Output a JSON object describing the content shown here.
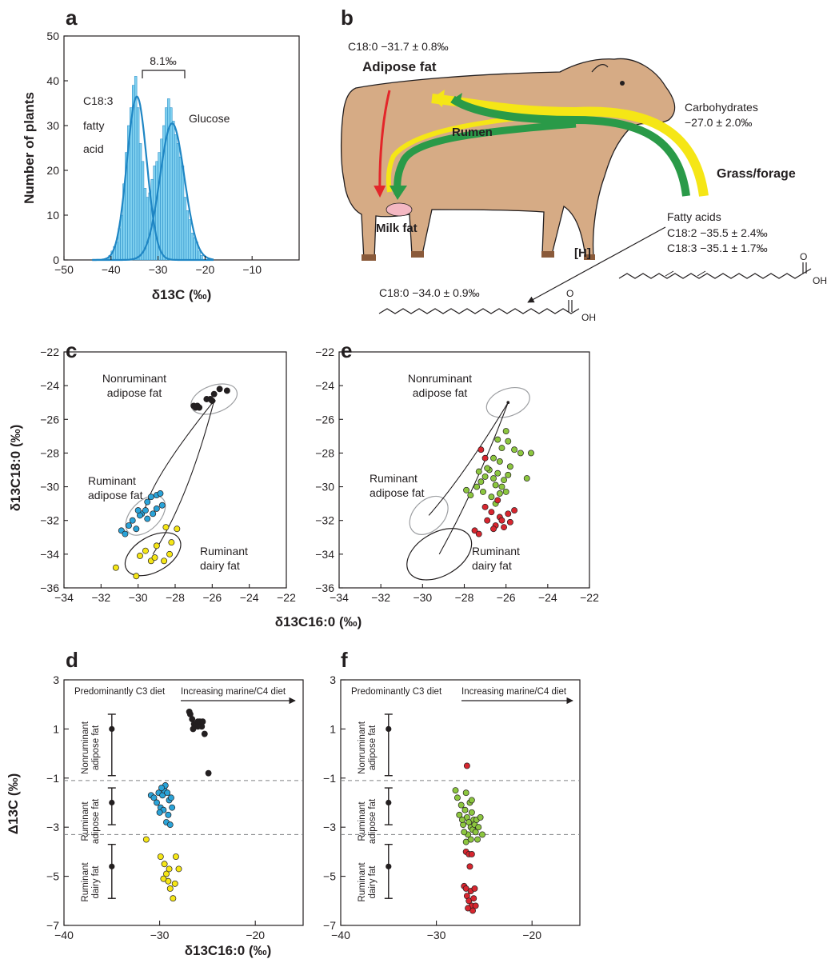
{
  "panels": {
    "a": {
      "letter": "a",
      "ylabel": "Number of plants",
      "xlabel": "δ13C (‰)",
      "label_c183_line1": "C18:3",
      "label_c183_line2": "fatty",
      "label_c183_line3": "acid",
      "label_glucose": "Glucose",
      "bracket": "8.1‰"
    },
    "b": {
      "letter": "b"
    },
    "c": {
      "letter": "c",
      "ylabel": "δ13C18:0 (‰)",
      "xlabel": "δ13C16:0 (‰)"
    },
    "d": {
      "letter": "d",
      "ylabel": "Δ13C (‰)",
      "xlabel": "δ13C16:0 (‰)"
    },
    "e": {
      "letter": "e"
    },
    "f": {
      "letter": "f"
    }
  },
  "cow": {
    "adipose_value": "C18:0 −31.7 ± 0.8‰",
    "adipose_label": "Adipose fat",
    "rumen": "Rumen",
    "milk": "Milk fat",
    "carbs_label": "Carbohydrates",
    "carbs_value": "−27.0 ± 2.0‰",
    "grass": "Grass/forage",
    "fatty_acids": "Fatty acids",
    "c182_value": "C18:2 −35.5 ± 2.4‰",
    "c183_value": "C18:3 −35.1 ± 1.7‰",
    "h_label": "[H]",
    "c180_value": "C18:0 −34.0 ± 0.9‰",
    "oh": "OH",
    "o": "O"
  },
  "groups": {
    "nonruminant": "Nonruminant adipose fat",
    "ruminant_adipose": "Ruminant adipose fat",
    "ruminant_dairy": "Ruminant dairy fat",
    "pred_c3": "Predominantly C3 diet",
    "increasing": "Increasing marine/C4 diet"
  },
  "colors": {
    "black": "#231f20",
    "blue": "#2aa3d8",
    "yellow": "#f5e616",
    "green": "#8cc63f",
    "red": "#d7262f",
    "hist": "#7fd0ef",
    "curve": "#1f86c4",
    "ellipse": "#9d9fa2",
    "cow_body": "#d6ab85"
  },
  "chart_data": [
    {
      "panel": "a",
      "type": "bar",
      "xlabel": "δ13C (‰)",
      "ylabel": "Number of plants",
      "xlim": [
        -50,
        0
      ],
      "ylim": [
        0,
        50
      ],
      "xticks": [
        -50,
        -40,
        -30,
        -20,
        -10
      ],
      "yticks": [
        0,
        10,
        20,
        30,
        40,
        50
      ],
      "bins": [
        -40.5,
        -40,
        -39.5,
        -39,
        -38.5,
        -38,
        -37.5,
        -37,
        -36.5,
        -36,
        -35.5,
        -35,
        -34.5,
        -34,
        -33.5,
        -33,
        -32.5,
        -32,
        -31.5,
        -31,
        -30.5,
        -30,
        -29.5,
        -29,
        -28.5,
        -28,
        -27.5,
        -27,
        -26.5,
        -26,
        -25.5,
        -25,
        -24.5,
        -24,
        -23.5,
        -23,
        -22.5,
        -22,
        -21.5,
        -21,
        -20.5
      ],
      "counts": [
        1,
        2,
        3,
        4,
        7,
        10,
        17,
        24,
        30,
        34,
        39,
        41,
        34,
        26,
        22,
        16,
        14,
        15,
        18,
        21,
        22,
        24,
        27,
        30,
        34,
        36,
        34,
        31,
        28,
        26,
        23,
        21,
        14,
        11,
        9,
        6,
        5,
        4,
        2,
        1,
        0
      ],
      "curves": [
        {
          "mean": -34.5,
          "sd": 2.1,
          "peak": 36.5
        },
        {
          "mean": -27.0,
          "sd": 2.6,
          "peak": 30.5
        }
      ]
    },
    {
      "panel": "c",
      "type": "scatter",
      "xlabel": "δ13C16:0 (‰)",
      "ylabel": "δ13C18:0 (‰)",
      "xlim": [
        -34,
        -22
      ],
      "ylim": [
        -36,
        -22
      ],
      "xticks": [
        -34,
        -32,
        -30,
        -28,
        -26,
        -24,
        -22
      ],
      "yticks": [
        -36,
        -34,
        -32,
        -30,
        -28,
        -26,
        -24,
        -22
      ],
      "series": [
        {
          "name": "Nonruminant adipose fat",
          "color": "black",
          "points": [
            [
              -27.0,
              -25.2
            ],
            [
              -26.8,
              -25.2
            ],
            [
              -26.9,
              -25.3
            ],
            [
              -26.3,
              -24.8
            ],
            [
              -26.1,
              -24.8
            ],
            [
              -25.9,
              -24.5
            ],
            [
              -25.6,
              -24.2
            ],
            [
              -25.2,
              -24.3
            ],
            [
              -26.0,
              -24.9
            ],
            [
              -26.7,
              -25.3
            ]
          ]
        },
        {
          "name": "Ruminant adipose fat",
          "color": "blue",
          "points": [
            [
              -30.9,
              -32.6
            ],
            [
              -30.7,
              -32.8
            ],
            [
              -30.5,
              -32.3
            ],
            [
              -30.3,
              -32.0
            ],
            [
              -30.1,
              -32.5
            ],
            [
              -29.8,
              -31.6
            ],
            [
              -29.6,
              -31.4
            ],
            [
              -29.9,
              -31.7
            ],
            [
              -29.5,
              -31.9
            ],
            [
              -29.3,
              -30.6
            ],
            [
              -29.0,
              -30.5
            ],
            [
              -28.8,
              -30.4
            ],
            [
              -28.7,
              -31.1
            ],
            [
              -29.2,
              -31.6
            ],
            [
              -29.5,
              -30.9
            ],
            [
              -30.0,
              -31.4
            ],
            [
              -29.0,
              -31.3
            ]
          ]
        },
        {
          "name": "Ruminant dairy fat",
          "color": "yellow",
          "points": [
            [
              -31.2,
              -34.8
            ],
            [
              -30.1,
              -35.3
            ],
            [
              -29.9,
              -34.1
            ],
            [
              -29.6,
              -33.8
            ],
            [
              -29.3,
              -34.4
            ],
            [
              -29.0,
              -33.5
            ],
            [
              -28.6,
              -34.4
            ],
            [
              -28.2,
              -33.3
            ],
            [
              -28.3,
              -34.0
            ],
            [
              -28.5,
              -32.4
            ],
            [
              -27.9,
              -32.5
            ],
            [
              -29.1,
              -34.2
            ]
          ]
        }
      ]
    },
    {
      "panel": "e",
      "type": "scatter",
      "xlabel": "δ13C16:0 (‰)",
      "ylabel": "δ13C18:0 (‰)",
      "xlim": [
        -34,
        -22
      ],
      "ylim": [
        -36,
        -22
      ],
      "xticks": [
        -34,
        -32,
        -30,
        -28,
        -26,
        -24,
        -22
      ],
      "yticks": [
        -36,
        -34,
        -32,
        -30,
        -28,
        -26,
        -24,
        -22
      ],
      "series": [
        {
          "name": "green",
          "color": "green",
          "points": [
            [
              -27.9,
              -30.2
            ],
            [
              -27.7,
              -30.5
            ],
            [
              -27.4,
              -30.0
            ],
            [
              -27.2,
              -29.7
            ],
            [
              -27.0,
              -29.4
            ],
            [
              -26.8,
              -29.0
            ],
            [
              -26.6,
              -29.5
            ],
            [
              -26.5,
              -29.9
            ],
            [
              -26.4,
              -29.2
            ],
            [
              -26.2,
              -30.0
            ],
            [
              -26.1,
              -29.6
            ],
            [
              -26.0,
              -30.3
            ],
            [
              -25.9,
              -29.3
            ],
            [
              -25.8,
              -28.8
            ],
            [
              -26.3,
              -28.5
            ],
            [
              -26.6,
              -28.3
            ],
            [
              -26.9,
              -28.9
            ],
            [
              -27.1,
              -30.3
            ],
            [
              -26.7,
              -30.6
            ],
            [
              -26.5,
              -31.0
            ],
            [
              -26.2,
              -27.7
            ],
            [
              -25.9,
              -27.3
            ],
            [
              -25.6,
              -27.8
            ],
            [
              -25.3,
              -28.0
            ],
            [
              -24.8,
              -28.0
            ],
            [
              -25.0,
              -29.5
            ],
            [
              -26.0,
              -26.7
            ],
            [
              -26.4,
              -27.2
            ],
            [
              -27.3,
              -29.1
            ],
            [
              -26.3,
              -30.4
            ]
          ]
        },
        {
          "name": "red",
          "color": "red",
          "points": [
            [
              -27.2,
              -27.8
            ],
            [
              -27.0,
              -28.3
            ],
            [
              -27.5,
              -32.6
            ],
            [
              -27.3,
              -32.8
            ],
            [
              -26.9,
              -32.0
            ],
            [
              -26.7,
              -31.5
            ],
            [
              -26.5,
              -32.3
            ],
            [
              -26.3,
              -31.8
            ],
            [
              -26.1,
              -32.4
            ],
            [
              -25.9,
              -31.6
            ],
            [
              -25.8,
              -32.1
            ],
            [
              -25.6,
              -31.4
            ],
            [
              -26.4,
              -30.8
            ],
            [
              -26.6,
              -32.5
            ],
            [
              -26.2,
              -32.0
            ],
            [
              -27.0,
              -31.2
            ]
          ]
        }
      ]
    },
    {
      "panel": "d",
      "type": "scatter",
      "xlabel": "δ13C16:0 (‰)",
      "ylabel": "Δ13C (‰)",
      "xlim": [
        -40,
        -15
      ],
      "ylim": [
        -7,
        3
      ],
      "xticks": [
        -40,
        -30,
        -20
      ],
      "yticks": [
        -7,
        -5,
        -3,
        -1,
        1,
        3
      ],
      "dashed_y": [
        -1.1,
        -3.3
      ],
      "reference_bars": [
        {
          "x": -35,
          "mean": 1.0,
          "low": -0.9,
          "high": 1.6
        },
        {
          "x": -35,
          "mean": -2.0,
          "low": -2.9,
          "high": -1.4
        },
        {
          "x": -35,
          "mean": -4.6,
          "low": -5.9,
          "high": -3.7
        }
      ],
      "series": [
        {
          "name": "black",
          "color": "black",
          "points": [
            [
              -26.9,
              1.7
            ],
            [
              -26.8,
              1.6
            ],
            [
              -26.6,
              1.4
            ],
            [
              -26.4,
              1.2
            ],
            [
              -26.2,
              1.2
            ],
            [
              -26.0,
              1.3
            ],
            [
              -25.8,
              1.3
            ],
            [
              -25.6,
              1.1
            ],
            [
              -25.5,
              1.3
            ],
            [
              -25.3,
              0.8
            ],
            [
              -24.9,
              -0.8
            ],
            [
              -26.5,
              1.0
            ],
            [
              -26.0,
              1.1
            ]
          ]
        },
        {
          "name": "blue",
          "color": "blue",
          "points": [
            [
              -30.9,
              -1.7
            ],
            [
              -30.6,
              -1.8
            ],
            [
              -30.3,
              -2.0
            ],
            [
              -30.1,
              -1.6
            ],
            [
              -29.9,
              -2.2
            ],
            [
              -29.7,
              -1.7
            ],
            [
              -29.5,
              -1.5
            ],
            [
              -29.4,
              -1.3
            ],
            [
              -29.2,
              -1.6
            ],
            [
              -29.0,
              -1.9
            ],
            [
              -28.8,
              -1.8
            ],
            [
              -28.7,
              -2.2
            ],
            [
              -29.1,
              -2.5
            ],
            [
              -29.3,
              -2.8
            ],
            [
              -28.9,
              -2.9
            ],
            [
              -29.6,
              -2.3
            ],
            [
              -30.0,
              -2.4
            ],
            [
              -29.8,
              -1.4
            ]
          ]
        },
        {
          "name": "yellow",
          "color": "yellow",
          "points": [
            [
              -31.4,
              -3.5
            ],
            [
              -29.9,
              -4.2
            ],
            [
              -29.5,
              -4.5
            ],
            [
              -29.3,
              -4.9
            ],
            [
              -29.1,
              -5.2
            ],
            [
              -28.9,
              -5.5
            ],
            [
              -28.6,
              -5.9
            ],
            [
              -28.4,
              -5.3
            ],
            [
              -28.0,
              -4.7
            ],
            [
              -28.3,
              -4.2
            ],
            [
              -29.6,
              -5.1
            ],
            [
              -29.0,
              -4.7
            ]
          ]
        }
      ]
    },
    {
      "panel": "f",
      "type": "scatter",
      "xlabel": "δ13C16:0 (‰)",
      "ylabel": "Δ13C (‰)",
      "xlim": [
        -40,
        -15
      ],
      "ylim": [
        -7,
        3
      ],
      "xticks": [
        -40,
        -30,
        -20
      ],
      "yticks": [
        -7,
        -5,
        -3,
        -1,
        1,
        3
      ],
      "dashed_y": [
        -1.1,
        -3.3
      ],
      "reference_bars": [
        {
          "x": -35,
          "mean": 1.0,
          "low": -0.9,
          "high": 1.6
        },
        {
          "x": -35,
          "mean": -2.0,
          "low": -2.9,
          "high": -1.4
        },
        {
          "x": -35,
          "mean": -4.6,
          "low": -5.9,
          "high": -3.7
        }
      ],
      "series": [
        {
          "name": "green",
          "color": "green",
          "points": [
            [
              -28.0,
              -1.5
            ],
            [
              -27.8,
              -1.8
            ],
            [
              -27.6,
              -2.5
            ],
            [
              -27.4,
              -2.1
            ],
            [
              -27.2,
              -2.9
            ],
            [
              -27.0,
              -2.3
            ],
            [
              -26.9,
              -1.6
            ],
            [
              -26.8,
              -2.6
            ],
            [
              -26.6,
              -2.8
            ],
            [
              -26.5,
              -2.0
            ],
            [
              -26.4,
              -3.0
            ],
            [
              -26.3,
              -2.4
            ],
            [
              -26.2,
              -3.1
            ],
            [
              -26.1,
              -2.7
            ],
            [
              -26.0,
              -2.9
            ],
            [
              -25.9,
              -3.2
            ],
            [
              -25.8,
              -2.7
            ],
            [
              -25.6,
              -3.0
            ],
            [
              -25.4,
              -2.6
            ],
            [
              -25.2,
              -3.3
            ],
            [
              -26.7,
              -3.3
            ],
            [
              -26.9,
              -3.6
            ],
            [
              -27.1,
              -3.2
            ],
            [
              -26.4,
              -3.5
            ],
            [
              -25.7,
              -3.5
            ],
            [
              -27.3,
              -2.7
            ],
            [
              -26.3,
              -1.9
            ]
          ]
        },
        {
          "name": "red",
          "color": "red",
          "points": [
            [
              -26.8,
              -0.5
            ],
            [
              -26.9,
              -4.0
            ],
            [
              -26.6,
              -4.1
            ],
            [
              -26.3,
              -4.1
            ],
            [
              -27.1,
              -5.4
            ],
            [
              -26.9,
              -5.5
            ],
            [
              -26.8,
              -5.8
            ],
            [
              -26.6,
              -6.0
            ],
            [
              -26.4,
              -5.6
            ],
            [
              -26.3,
              -6.2
            ],
            [
              -26.2,
              -6.4
            ],
            [
              -26.1,
              -5.9
            ],
            [
              -26.0,
              -5.5
            ],
            [
              -25.9,
              -6.2
            ],
            [
              -26.5,
              -4.6
            ],
            [
              -26.7,
              -6.3
            ]
          ]
        }
      ]
    }
  ]
}
